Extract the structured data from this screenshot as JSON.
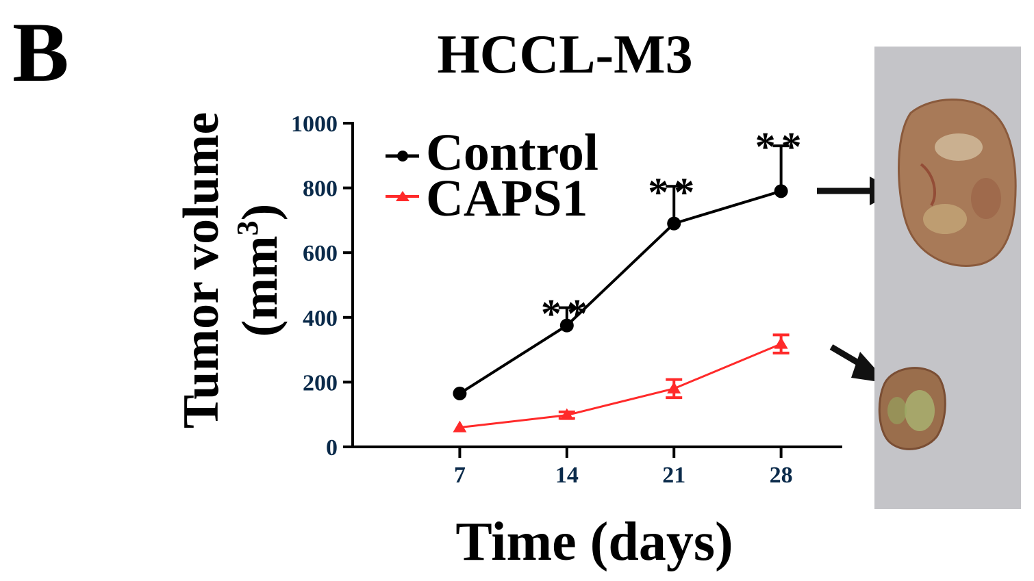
{
  "panel_label": "B",
  "chart_data": {
    "type": "line",
    "title": "HCCL-M3",
    "xlabel": "Time (days)",
    "ylabel_main": "Tumor volume",
    "ylabel_unit": "(mm",
    "ylabel_unit_sup": "3",
    "ylabel_unit_close": ")",
    "categories": [
      "7",
      "14",
      "21",
      "28"
    ],
    "x": [
      7,
      14,
      21,
      28
    ],
    "xlim": [
      0,
      32
    ],
    "ylim": [
      0,
      1000
    ],
    "yticks": [
      0,
      200,
      400,
      600,
      800,
      1000
    ],
    "ytick_labels": [
      "0",
      "200",
      "400",
      "600",
      "800",
      "1000"
    ],
    "legend_position": "top-left",
    "series": [
      {
        "name": "Control",
        "color": "#000000",
        "marker": "circle",
        "values": [
          165,
          375,
          690,
          790
        ],
        "error": [
          0,
          55,
          115,
          140
        ],
        "error_dir": "up"
      },
      {
        "name": "CAPS1",
        "color": "#ff2a2a",
        "marker": "triangle",
        "values": [
          60,
          98,
          180,
          318
        ],
        "error": [
          0,
          10,
          28,
          28
        ],
        "error_dir": "both"
      }
    ],
    "annotations": [
      {
        "text": "**",
        "x": 14,
        "y": 420
      },
      {
        "text": "**",
        "x": 21,
        "y": 795
      },
      {
        "text": "**",
        "x": 28,
        "y": 935
      }
    ],
    "colors": {
      "axis": "#000000",
      "tick_label": "#0a2a4a"
    }
  },
  "photo": {
    "background": "#c4c4c8",
    "large_tumor_color": "#a87a58",
    "small_tumor_color": "#9a6e4c"
  }
}
